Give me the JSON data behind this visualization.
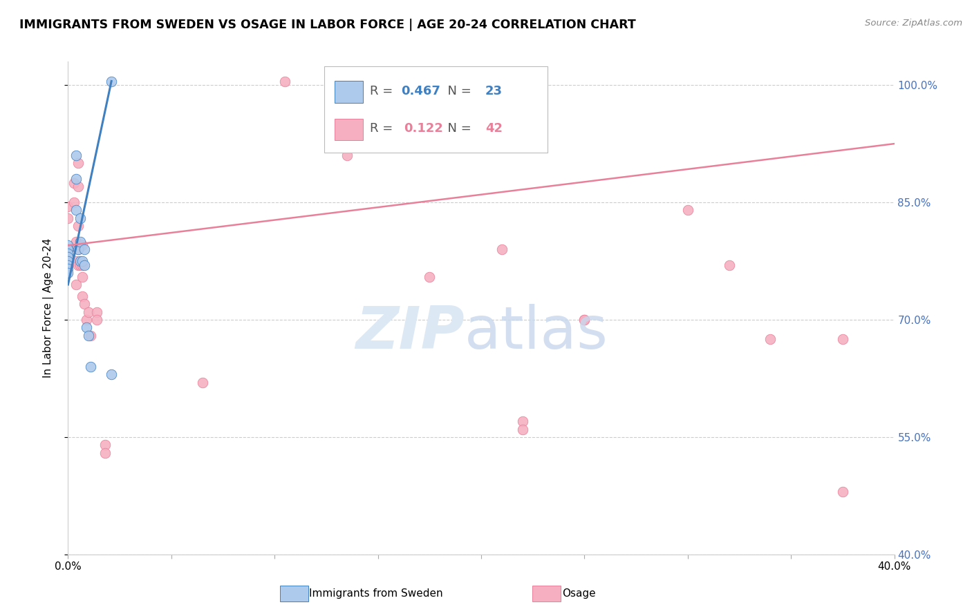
{
  "title": "IMMIGRANTS FROM SWEDEN VS OSAGE IN LABOR FORCE | AGE 20-24 CORRELATION CHART",
  "source": "Source: ZipAtlas.com",
  "ylabel": "In Labor Force | Age 20-24",
  "xlim": [
    0.0,
    0.4
  ],
  "ylim": [
    0.4,
    1.03
  ],
  "ytick_positions": [
    0.4,
    0.55,
    0.7,
    0.85,
    1.0
  ],
  "yticklabels": [
    "40.0%",
    "55.0%",
    "70.0%",
    "85.0%",
    "100.0%"
  ],
  "sweden_R": 0.467,
  "sweden_N": 23,
  "osage_R": 0.122,
  "osage_N": 42,
  "sweden_color": "#adc9eb",
  "osage_color": "#f5afc0",
  "sweden_line_color": "#4080c0",
  "osage_line_color": "#e8809a",
  "sweden_line_x0": 0.0,
  "sweden_line_y0": 0.745,
  "sweden_line_x1": 0.021,
  "sweden_line_y1": 1.005,
  "osage_line_x0": 0.0,
  "osage_line_y0": 0.795,
  "osage_line_x1": 0.4,
  "osage_line_y1": 0.925,
  "sweden_points_x": [
    0.0,
    0.0,
    0.0,
    0.0,
    0.0,
    0.0,
    0.0,
    0.0,
    0.004,
    0.004,
    0.004,
    0.005,
    0.006,
    0.006,
    0.006,
    0.007,
    0.008,
    0.008,
    0.009,
    0.01,
    0.011,
    0.021,
    0.021
  ],
  "sweden_points_y": [
    0.795,
    0.79,
    0.785,
    0.78,
    0.775,
    0.77,
    0.765,
    0.76,
    0.91,
    0.88,
    0.84,
    0.79,
    0.83,
    0.8,
    0.775,
    0.775,
    0.79,
    0.77,
    0.69,
    0.68,
    0.64,
    0.63,
    1.005
  ],
  "osage_points_x": [
    0.0,
    0.0,
    0.0,
    0.0,
    0.003,
    0.003,
    0.004,
    0.004,
    0.004,
    0.005,
    0.005,
    0.005,
    0.005,
    0.005,
    0.006,
    0.006,
    0.007,
    0.007,
    0.007,
    0.007,
    0.008,
    0.009,
    0.01,
    0.011,
    0.014,
    0.014,
    0.018,
    0.018,
    0.105,
    0.135,
    0.175,
    0.22,
    0.22,
    0.25,
    0.25,
    0.3,
    0.34,
    0.375,
    0.375,
    0.32,
    0.21,
    0.065
  ],
  "osage_points_y": [
    0.845,
    0.83,
    0.79,
    0.78,
    0.875,
    0.85,
    0.8,
    0.775,
    0.745,
    0.9,
    0.87,
    0.82,
    0.79,
    0.77,
    0.795,
    0.77,
    0.795,
    0.77,
    0.755,
    0.73,
    0.72,
    0.7,
    0.71,
    0.68,
    0.71,
    0.7,
    0.54,
    0.53,
    1.005,
    0.91,
    0.755,
    0.57,
    0.56,
    0.7,
    0.7,
    0.84,
    0.675,
    0.675,
    0.48,
    0.77,
    0.79,
    0.62
  ]
}
